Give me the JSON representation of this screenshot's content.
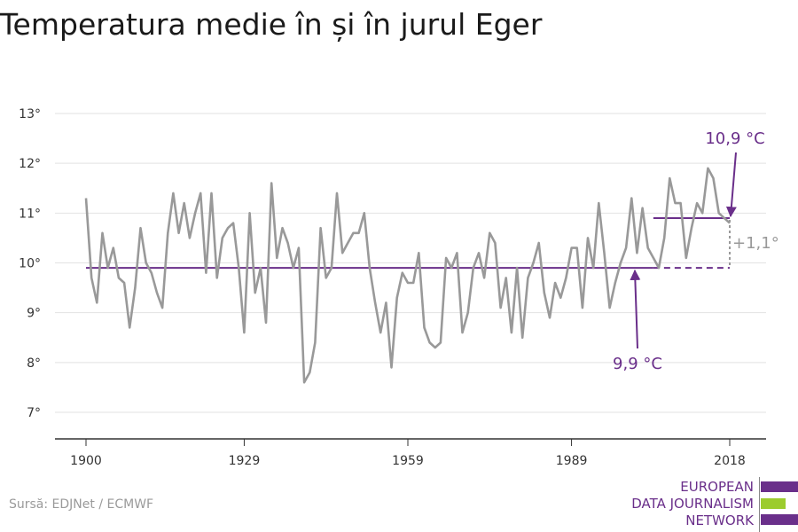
{
  "title": "Temperatura medie în și în jurul Eger",
  "source": "Sursă: EDJNet / ECMWF",
  "logo": {
    "lines": [
      "EUROPEAN",
      "DATA JOURNALISM",
      "NETWORK"
    ],
    "colors": {
      "purple": "#6a2f8a",
      "green": "#9ccc2e"
    }
  },
  "chart_data": {
    "type": "line",
    "x_range": [
      1900,
      2018
    ],
    "ylim": [
      6.5,
      13.3
    ],
    "y_ticks": [
      7,
      8,
      9,
      10,
      11,
      12,
      13
    ],
    "y_tick_labels": [
      "7°",
      "8°",
      "9°",
      "10°",
      "11°",
      "12°",
      "13°"
    ],
    "x_ticks": [
      1900,
      1929,
      1959,
      1989,
      2018
    ],
    "x_tick_labels": [
      "1900",
      "1929",
      "1959",
      "1989",
      "2018"
    ],
    "grid": true,
    "colors": {
      "series": "#999999",
      "reference": "#6a2f8a",
      "difference": "#999999"
    },
    "series": [
      {
        "x": [
          1900,
          1901,
          1902,
          1903,
          1904,
          1905,
          1906,
          1907,
          1908,
          1909,
          1910,
          1911,
          1912,
          1913,
          1914,
          1915,
          1916,
          1917,
          1918,
          1919,
          1920,
          1921,
          1922,
          1923,
          1924,
          1925,
          1926,
          1927,
          1928,
          1929,
          1930,
          1931,
          1932,
          1933,
          1934,
          1935,
          1936,
          1937,
          1938,
          1939,
          1940,
          1941,
          1942,
          1943,
          1944,
          1945,
          1946,
          1947,
          1948,
          1949,
          1950,
          1951,
          1952,
          1953,
          1954,
          1955,
          1956,
          1957,
          1958,
          1959,
          1960,
          1961,
          1962,
          1963,
          1964,
          1965,
          1966,
          1967,
          1968,
          1969,
          1970,
          1971,
          1972,
          1973,
          1974,
          1975,
          1976,
          1977,
          1978,
          1979,
          1980,
          1981,
          1982,
          1983,
          1984,
          1985,
          1986,
          1987,
          1988,
          1989,
          1990,
          1991,
          1992,
          1993,
          1994,
          1995,
          1996,
          1997,
          1998,
          1999,
          2000,
          2001,
          2002,
          2003,
          2004,
          2005,
          2006,
          2007,
          2008,
          2009,
          2010,
          2011,
          2012,
          2013,
          2014,
          2015,
          2016,
          2017,
          2018
        ],
        "values": [
          11.3,
          9.7,
          9.2,
          10.6,
          9.9,
          10.3,
          9.7,
          9.6,
          8.7,
          9.5,
          10.7,
          10.0,
          9.8,
          9.4,
          9.1,
          10.6,
          11.4,
          10.6,
          11.2,
          10.5,
          11.0,
          11.4,
          9.8,
          11.4,
          9.7,
          10.5,
          10.7,
          10.8,
          9.9,
          8.6,
          11.0,
          9.4,
          9.9,
          8.8,
          11.6,
          10.1,
          10.7,
          10.4,
          9.9,
          10.3,
          7.6,
          7.8,
          8.4,
          10.7,
          9.7,
          9.9,
          11.4,
          10.2,
          10.4,
          10.6,
          10.6,
          11.0,
          9.9,
          9.2,
          8.6,
          9.2,
          7.9,
          9.3,
          9.8,
          9.6,
          9.6,
          10.2,
          8.7,
          8.4,
          8.3,
          8.4,
          10.1,
          9.9,
          10.2,
          8.6,
          9.0,
          9.9,
          10.2,
          9.7,
          10.6,
          10.4,
          9.1,
          9.7,
          8.6,
          9.9,
          8.5,
          9.7,
          10.0,
          10.4,
          9.4,
          8.9,
          9.6,
          9.3,
          9.7,
          10.3,
          10.3,
          9.1,
          10.5,
          9.9,
          11.2,
          10.2,
          9.1,
          9.6,
          10.0,
          10.3,
          11.3,
          10.2,
          11.1,
          10.3,
          10.1,
          9.9,
          10.5,
          11.7,
          11.2,
          11.2,
          10.1,
          10.7,
          11.2,
          11.0,
          11.9,
          11.7,
          11.0,
          10.9,
          10.8
        ]
      }
    ],
    "reference_lines": [
      {
        "value": 9.9,
        "x_start": 1900,
        "x_solid_end": 2004,
        "x_end": 2018,
        "label": "9,9 °C"
      },
      {
        "value": 10.9,
        "x_start": 2004,
        "x_end": 2018,
        "label": "10,9 °C"
      }
    ],
    "difference_label": "+1,1°"
  }
}
